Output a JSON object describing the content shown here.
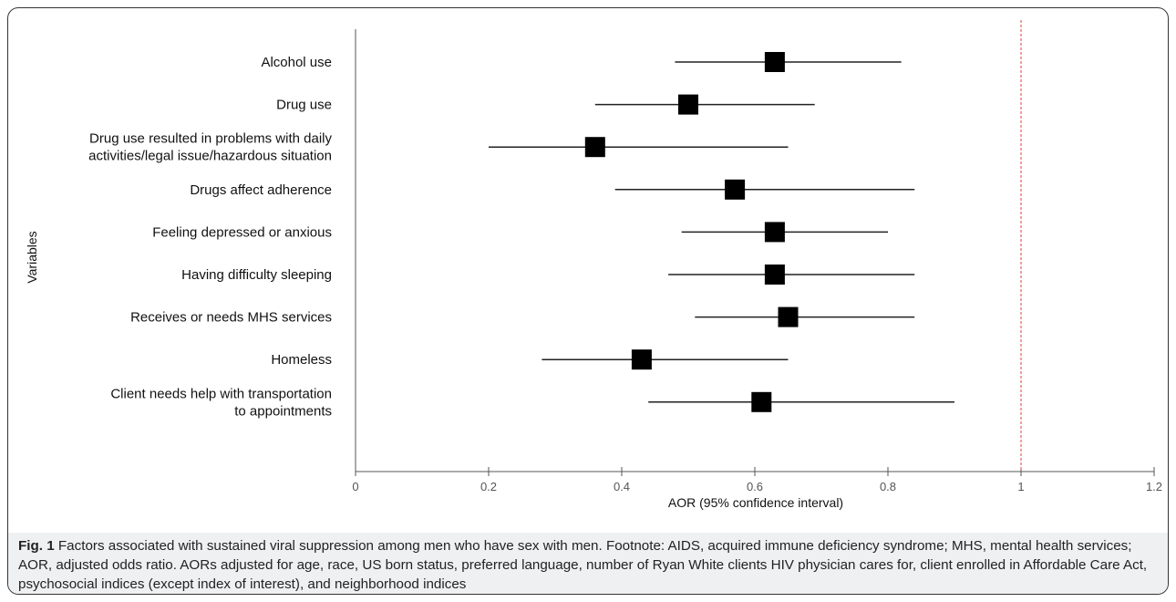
{
  "chart_data": {
    "type": "scatter",
    "subtype": "forest-plot",
    "title": "",
    "xlabel": "AOR (95% confidence interval)",
    "ylabel": "Variables",
    "xlim": [
      0,
      1.2
    ],
    "xticks": [
      "0",
      "0.2",
      "0.4",
      "0.6",
      "0.8",
      "1",
      "1.2"
    ],
    "reference_line": 1,
    "reference_color": "#e0403a",
    "marker_color": "#000000",
    "grid": false,
    "rows": [
      {
        "label": [
          "Alcohol use"
        ],
        "aor": 0.63,
        "lo": 0.48,
        "hi": 0.82
      },
      {
        "label": [
          "Drug use"
        ],
        "aor": 0.5,
        "lo": 0.36,
        "hi": 0.69
      },
      {
        "label": [
          "Drug use resulted in problems with daily",
          "activities/legal issue/hazardous situation"
        ],
        "aor": 0.36,
        "lo": 0.2,
        "hi": 0.65
      },
      {
        "label": [
          "Drugs affect adherence"
        ],
        "aor": 0.57,
        "lo": 0.39,
        "hi": 0.84
      },
      {
        "label": [
          "Feeling depressed or anxious"
        ],
        "aor": 0.63,
        "lo": 0.49,
        "hi": 0.8
      },
      {
        "label": [
          "Having difficulty sleeping"
        ],
        "aor": 0.63,
        "lo": 0.47,
        "hi": 0.84
      },
      {
        "label": [
          "Receives or needs MHS services"
        ],
        "aor": 0.65,
        "lo": 0.51,
        "hi": 0.84
      },
      {
        "label": [
          "Homeless"
        ],
        "aor": 0.43,
        "lo": 0.28,
        "hi": 0.65
      },
      {
        "label": [
          "Client needs help with transportation",
          "to appointments"
        ],
        "aor": 0.61,
        "lo": 0.44,
        "hi": 0.9
      }
    ]
  },
  "caption": {
    "fig_label": "Fig. 1",
    "text": "Factors associated with sustained viral suppression among men who have sex with men. Footnote: AIDS, acquired immune deficiency syndrome; MHS, mental health services; AOR, adjusted odds ratio. AORs adjusted for age, race, US born status, preferred language, number of Ryan White clients HIV physician cares for, client enrolled in Affordable Care Act, psychosocial indices (except index of interest), and neighborhood indices"
  }
}
